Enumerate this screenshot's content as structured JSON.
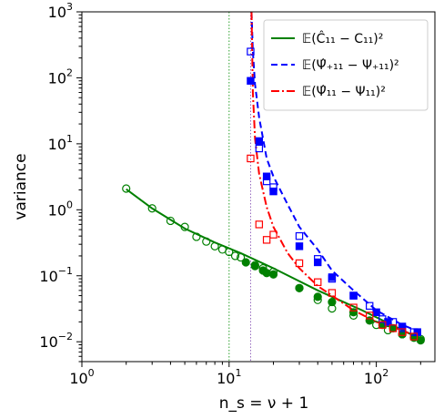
{
  "chart_data": {
    "type": "scatter",
    "xscale": "log",
    "yscale": "log",
    "xlim": [
      1,
      250
    ],
    "ylim": [
      0.005,
      1000
    ],
    "xlabel": "n_s = ν + 1",
    "ylabel": "variance",
    "x_ticks": [
      {
        "value": 1,
        "base": "10",
        "exp": "0"
      },
      {
        "value": 10,
        "base": "10",
        "exp": "1"
      },
      {
        "value": 100,
        "base": "10",
        "exp": "2"
      }
    ],
    "y_ticks": [
      {
        "value": 0.01,
        "base": "10",
        "exp": "−2"
      },
      {
        "value": 0.1,
        "base": "10",
        "exp": "−1"
      },
      {
        "value": 1,
        "base": "10",
        "exp": "0"
      },
      {
        "value": 10,
        "base": "10",
        "exp": "1"
      },
      {
        "value": 100,
        "base": "10",
        "exp": "2"
      },
      {
        "value": 1000,
        "base": "10",
        "exp": "3"
      }
    ],
    "vlines": [
      {
        "x": 10,
        "color": "#2ca02c"
      },
      {
        "x": 14,
        "color": "#9467bd"
      }
    ],
    "legend_position": "top-right",
    "series": [
      {
        "name": "𝔼(Ĉ₁₁ − C₁₁)²",
        "color": "#008000",
        "line_style": "solid",
        "curve": {
          "x": [
            2,
            3,
            5,
            8,
            12,
            20,
            40,
            80,
            200
          ],
          "y": [
            2.05,
            1.05,
            0.52,
            0.32,
            0.22,
            0.13,
            0.06,
            0.03,
            0.011
          ]
        },
        "open_markers": {
          "marker": "circle",
          "x": [
            2,
            3,
            4,
            5,
            6,
            7,
            8,
            9,
            10,
            11,
            12,
            15,
            17,
            20,
            30,
            40,
            50,
            70,
            100,
            120,
            150,
            200
          ],
          "y": [
            2.1,
            1.05,
            0.68,
            0.55,
            0.39,
            0.33,
            0.28,
            0.25,
            0.23,
            0.2,
            0.19,
            0.145,
            0.13,
            0.115,
            0.065,
            0.043,
            0.032,
            0.025,
            0.018,
            0.015,
            0.013,
            0.011
          ]
        },
        "filled_markers": {
          "marker": "circle",
          "x": [
            13,
            15,
            17,
            18,
            20,
            30,
            40,
            50,
            70,
            90,
            110,
            130,
            150,
            180,
            200
          ],
          "y": [
            0.16,
            0.14,
            0.12,
            0.11,
            0.105,
            0.065,
            0.048,
            0.04,
            0.028,
            0.021,
            0.018,
            0.016,
            0.013,
            0.0115,
            0.0105
          ]
        }
      },
      {
        "name": "𝔼(Ψ̂₊₁₁ − Ψ₊₁₁)²",
        "color": "#0000ff",
        "line_style": "dashed",
        "curve": {
          "x": [
            14.2,
            14.5,
            15,
            16,
            18,
            20,
            25,
            30,
            40,
            50,
            70,
            100,
            150,
            200
          ],
          "y": [
            1000,
            250,
            80,
            25,
            6,
            3.2,
            1.2,
            0.55,
            0.25,
            0.12,
            0.06,
            0.03,
            0.018,
            0.014
          ]
        },
        "open_markers": {
          "marker": "square",
          "x": [
            14,
            16,
            18,
            20,
            30,
            40,
            50,
            70,
            90,
            110,
            130,
            150,
            180
          ],
          "y": [
            250,
            8.5,
            2.7,
            2.2,
            0.4,
            0.18,
            0.09,
            0.05,
            0.035,
            0.022,
            0.02,
            0.016,
            0.014
          ]
        },
        "filled_markers": {
          "marker": "square",
          "x": [
            14,
            16,
            18,
            20,
            30,
            40,
            50,
            70,
            100,
            120,
            150,
            190
          ],
          "y": [
            90,
            11,
            3.2,
            1.9,
            0.28,
            0.16,
            0.095,
            0.05,
            0.028,
            0.02,
            0.017,
            0.014
          ]
        }
      },
      {
        "name": "𝔼(Ψ̂₁₁ − Ψ₁₁)²",
        "color": "#ff0000",
        "line_style": "dashdot",
        "curve": {
          "x": [
            14.2,
            14.5,
            15,
            16,
            18,
            20,
            25,
            30,
            40,
            50,
            70,
            100,
            150,
            200
          ],
          "y": [
            1000,
            60,
            12,
            3.5,
            1.1,
            0.55,
            0.22,
            0.13,
            0.07,
            0.05,
            0.03,
            0.02,
            0.015,
            0.011
          ]
        },
        "open_markers": {
          "marker": "square",
          "x": [
            14,
            16,
            18,
            20,
            30,
            40,
            50,
            70,
            90,
            110,
            130,
            150,
            180
          ],
          "y": [
            6,
            0.6,
            0.35,
            0.42,
            0.155,
            0.08,
            0.055,
            0.033,
            0.025,
            0.018,
            0.016,
            0.014,
            0.012
          ]
        }
      }
    ]
  }
}
